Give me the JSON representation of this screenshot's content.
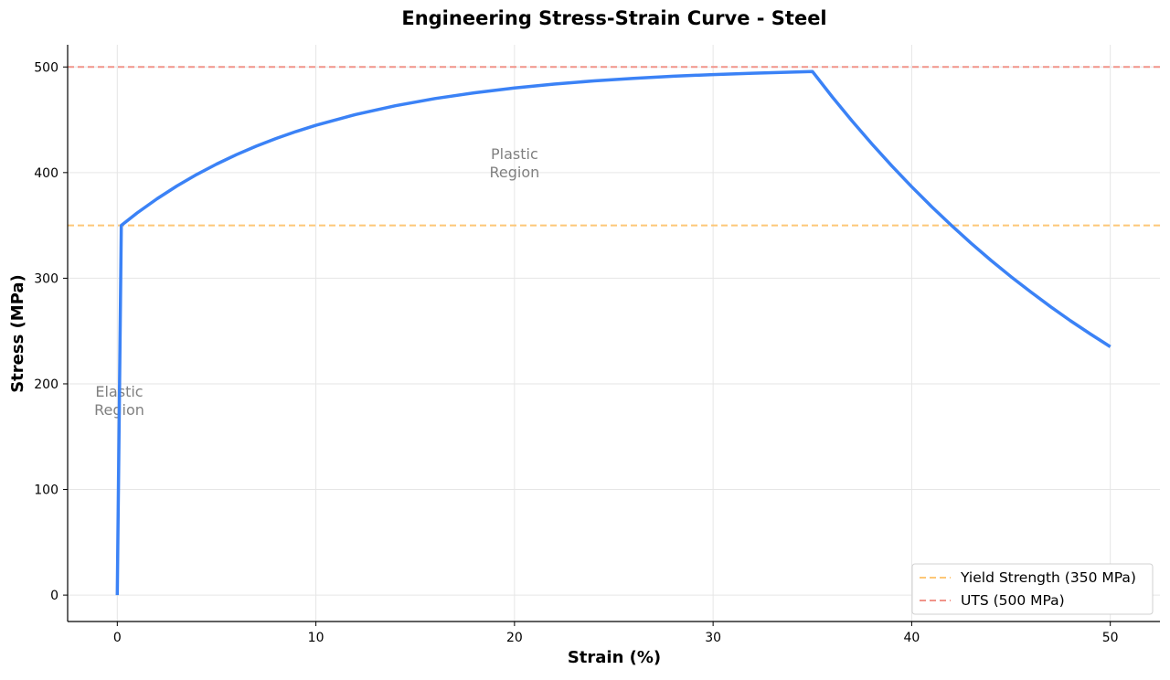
{
  "chart_data": {
    "type": "line",
    "title": "Engineering Stress-Strain Curve - Steel",
    "xlabel": "Strain (%)",
    "ylabel": "Stress (MPa)",
    "xlim": [
      -2.5,
      52.5
    ],
    "ylim": [
      -25,
      521
    ],
    "xticks": [
      0,
      10,
      20,
      30,
      40,
      50
    ],
    "yticks": [
      0,
      100,
      200,
      300,
      400,
      500
    ],
    "grid": true,
    "legend_position": "bottom-right",
    "series": [
      {
        "color": "#3b82f6",
        "x": [
          0,
          0.2,
          1,
          2,
          3,
          4,
          5,
          6,
          7,
          8,
          9,
          10,
          12,
          14,
          16,
          18,
          20,
          22,
          24,
          26,
          28,
          30,
          32,
          35,
          36,
          37,
          38,
          39,
          40,
          41,
          42,
          43,
          44,
          45,
          46,
          47,
          48,
          49,
          50
        ],
        "y": [
          0,
          350,
          361.8,
          375.2,
          387.3,
          398.2,
          408.1,
          417.0,
          425.0,
          432.3,
          438.9,
          444.8,
          455.0,
          463.3,
          470.1,
          475.6,
          480.1,
          483.8,
          486.8,
          489.2,
          491.2,
          492.8,
          494.1,
          495.7,
          471.7,
          448.8,
          427.0,
          406.3,
          386.6,
          367.8,
          350.0,
          333.0,
          316.8,
          301.5,
          286.9,
          272.9,
          259.7,
          247.1,
          235.1
        ]
      }
    ],
    "reference_lines": [
      {
        "name": "Yield Strength (350 MPa)",
        "y": 350,
        "color": "#fdc777",
        "style": "dashed"
      },
      {
        "name": "UTS (500 MPa)",
        "y": 500,
        "color": "#f1948a",
        "style": "dashed"
      }
    ],
    "annotations": [
      {
        "text": [
          "Elastic",
          "Region"
        ],
        "x": 0.1,
        "y": 188
      },
      {
        "text": [
          "Plastic",
          "Region"
        ],
        "x": 20,
        "y": 413
      }
    ]
  }
}
